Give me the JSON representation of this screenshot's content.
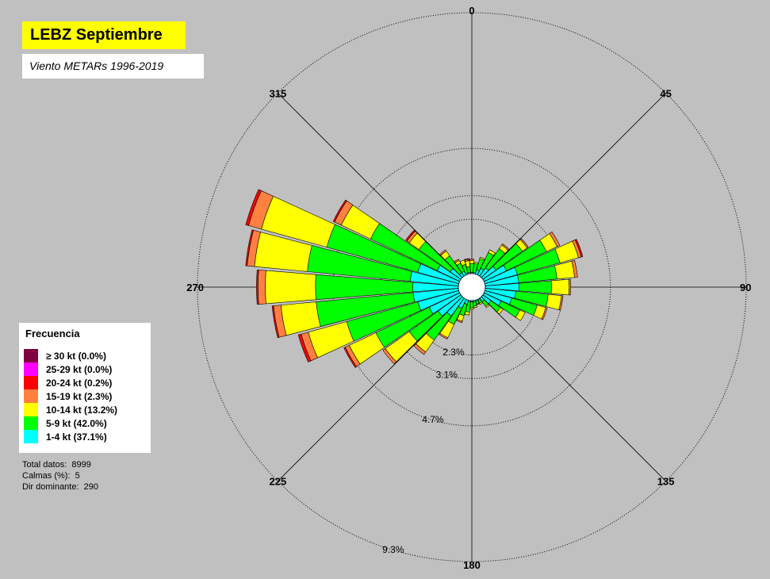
{
  "title": "LEBZ Septiembre",
  "subtitle": "Viento METARs 1996-2019",
  "legend": {
    "title": "Frecuencia",
    "items": [
      {
        "label": "≥ 30  kt (0.0%)",
        "color": "#800040"
      },
      {
        "label": "25-29 kt (0.0%)",
        "color": "#ff00ff"
      },
      {
        "label": "20-24 kt (0.2%)",
        "color": "#ff0000"
      },
      {
        "label": "15-19 kt (2.3%)",
        "color": "#ff8040"
      },
      {
        "label": "10-14 kt (13.2%)",
        "color": "#ffff00"
      },
      {
        "label": "5-9 kt (42.0%)",
        "color": "#00ff00"
      },
      {
        "label": "1-4 kt (37.1%)",
        "color": "#00ffff"
      }
    ]
  },
  "stats": {
    "total": "Total datos:  8999",
    "calm": "Calmas (%):  5",
    "dominant": "Dir dominante:  290"
  },
  "chart_data": {
    "type": "wind-rose",
    "title": "LEBZ Septiembre",
    "subtitle": "Viento METARs 1996-2019",
    "direction_labels": [
      "0",
      "45",
      "90",
      "135",
      "180",
      "225",
      "270",
      "315"
    ],
    "ring_labels": [
      "2.3%",
      "3.1%",
      "4.7%",
      "9.3%"
    ],
    "ring_values": [
      2.3,
      3.1,
      4.7,
      9.3
    ],
    "radial_max": 9.3,
    "speed_classes": [
      "1-4 kt",
      "5-9 kt",
      "10-14 kt",
      "15-19 kt",
      "20-24 kt",
      "25-29 kt",
      "≥ 30 kt"
    ],
    "colors": [
      "#00ffff",
      "#00ff00",
      "#ffff00",
      "#ff8040",
      "#ff0000",
      "#ff00ff",
      "#800040"
    ],
    "directions": [
      0,
      10,
      20,
      30,
      40,
      50,
      60,
      70,
      80,
      90,
      100,
      110,
      120,
      130,
      140,
      150,
      160,
      170,
      180,
      190,
      200,
      210,
      220,
      230,
      240,
      250,
      260,
      270,
      280,
      290,
      300,
      310,
      320,
      330,
      340,
      350
    ],
    "cumulative_values": [
      [
        0.5,
        0.8,
        0.9,
        0.95,
        0.95,
        0.95,
        0.95
      ],
      [
        0.5,
        0.8,
        0.85,
        0.85,
        0.85,
        0.85,
        0.85
      ],
      [
        0.6,
        1.0,
        1.05,
        1.05,
        1.05,
        1.05,
        1.05
      ],
      [
        0.7,
        1.3,
        1.4,
        1.4,
        1.4,
        1.4,
        1.4
      ],
      [
        0.8,
        1.6,
        1.75,
        1.8,
        1.8,
        1.8,
        1.8
      ],
      [
        1.0,
        2.1,
        2.3,
        2.35,
        2.35,
        2.35,
        2.35
      ],
      [
        1.3,
        2.8,
        3.2,
        3.3,
        3.3,
        3.3,
        3.3
      ],
      [
        1.6,
        3.1,
        3.75,
        3.85,
        3.9,
        3.9,
        3.9
      ],
      [
        1.6,
        2.9,
        3.5,
        3.6,
        3.6,
        3.6,
        3.6
      ],
      [
        1.6,
        2.7,
        3.3,
        3.35,
        3.35,
        3.35,
        3.35
      ],
      [
        1.5,
        2.6,
        3.05,
        3.1,
        3.1,
        3.1,
        3.1
      ],
      [
        1.4,
        2.3,
        2.6,
        2.65,
        2.65,
        2.65,
        2.65
      ],
      [
        1.1,
        1.8,
        2.0,
        2.0,
        2.0,
        2.0,
        2.0
      ],
      [
        0.8,
        1.2,
        1.3,
        1.3,
        1.3,
        1.3,
        1.3
      ],
      [
        0.6,
        0.8,
        0.85,
        0.85,
        0.85,
        0.85,
        0.85
      ],
      [
        0.5,
        0.6,
        0.65,
        0.65,
        0.65,
        0.65,
        0.65
      ],
      [
        0.5,
        0.6,
        0.62,
        0.62,
        0.62,
        0.62,
        0.62
      ],
      [
        0.5,
        0.65,
        0.7,
        0.7,
        0.7,
        0.7,
        0.7
      ],
      [
        0.5,
        0.7,
        0.75,
        0.75,
        0.75,
        0.75,
        0.75
      ],
      [
        0.5,
        0.85,
        0.95,
        0.95,
        0.95,
        0.95,
        0.95
      ],
      [
        0.6,
        1.0,
        1.2,
        1.25,
        1.25,
        1.25,
        1.25
      ],
      [
        0.8,
        1.4,
        1.9,
        1.95,
        1.95,
        1.95,
        1.95
      ],
      [
        1.2,
        2.2,
        2.7,
        2.8,
        2.8,
        2.8,
        2.8
      ],
      [
        1.4,
        2.6,
        3.6,
        3.7,
        3.7,
        3.7,
        3.7
      ],
      [
        1.6,
        3.6,
        4.6,
        4.75,
        4.8,
        4.8,
        4.8
      ],
      [
        1.9,
        4.4,
        5.75,
        6.0,
        6.1,
        6.1,
        6.1
      ],
      [
        2.0,
        5.3,
        6.5,
        6.75,
        6.8,
        6.8,
        6.8
      ],
      [
        2.0,
        5.3,
        7.0,
        7.25,
        7.3,
        7.3,
        7.3
      ],
      [
        2.1,
        5.6,
        7.4,
        7.65,
        7.7,
        7.7,
        7.7
      ],
      [
        1.9,
        5.1,
        7.4,
        7.85,
        7.95,
        7.95,
        7.95
      ],
      [
        1.3,
        3.8,
        4.9,
        5.15,
        5.2,
        5.2,
        5.2
      ],
      [
        0.9,
        2.2,
        2.6,
        2.7,
        2.75,
        2.75,
        2.75
      ],
      [
        0.6,
        1.3,
        1.5,
        1.55,
        1.55,
        1.55,
        1.55
      ],
      [
        0.6,
        0.9,
        1.0,
        1.05,
        1.05,
        1.05,
        1.05
      ],
      [
        0.5,
        0.8,
        0.95,
        0.95,
        0.95,
        0.95,
        0.95
      ],
      [
        0.5,
        0.7,
        0.9,
        0.95,
        0.97,
        0.97,
        0.97
      ]
    ]
  }
}
